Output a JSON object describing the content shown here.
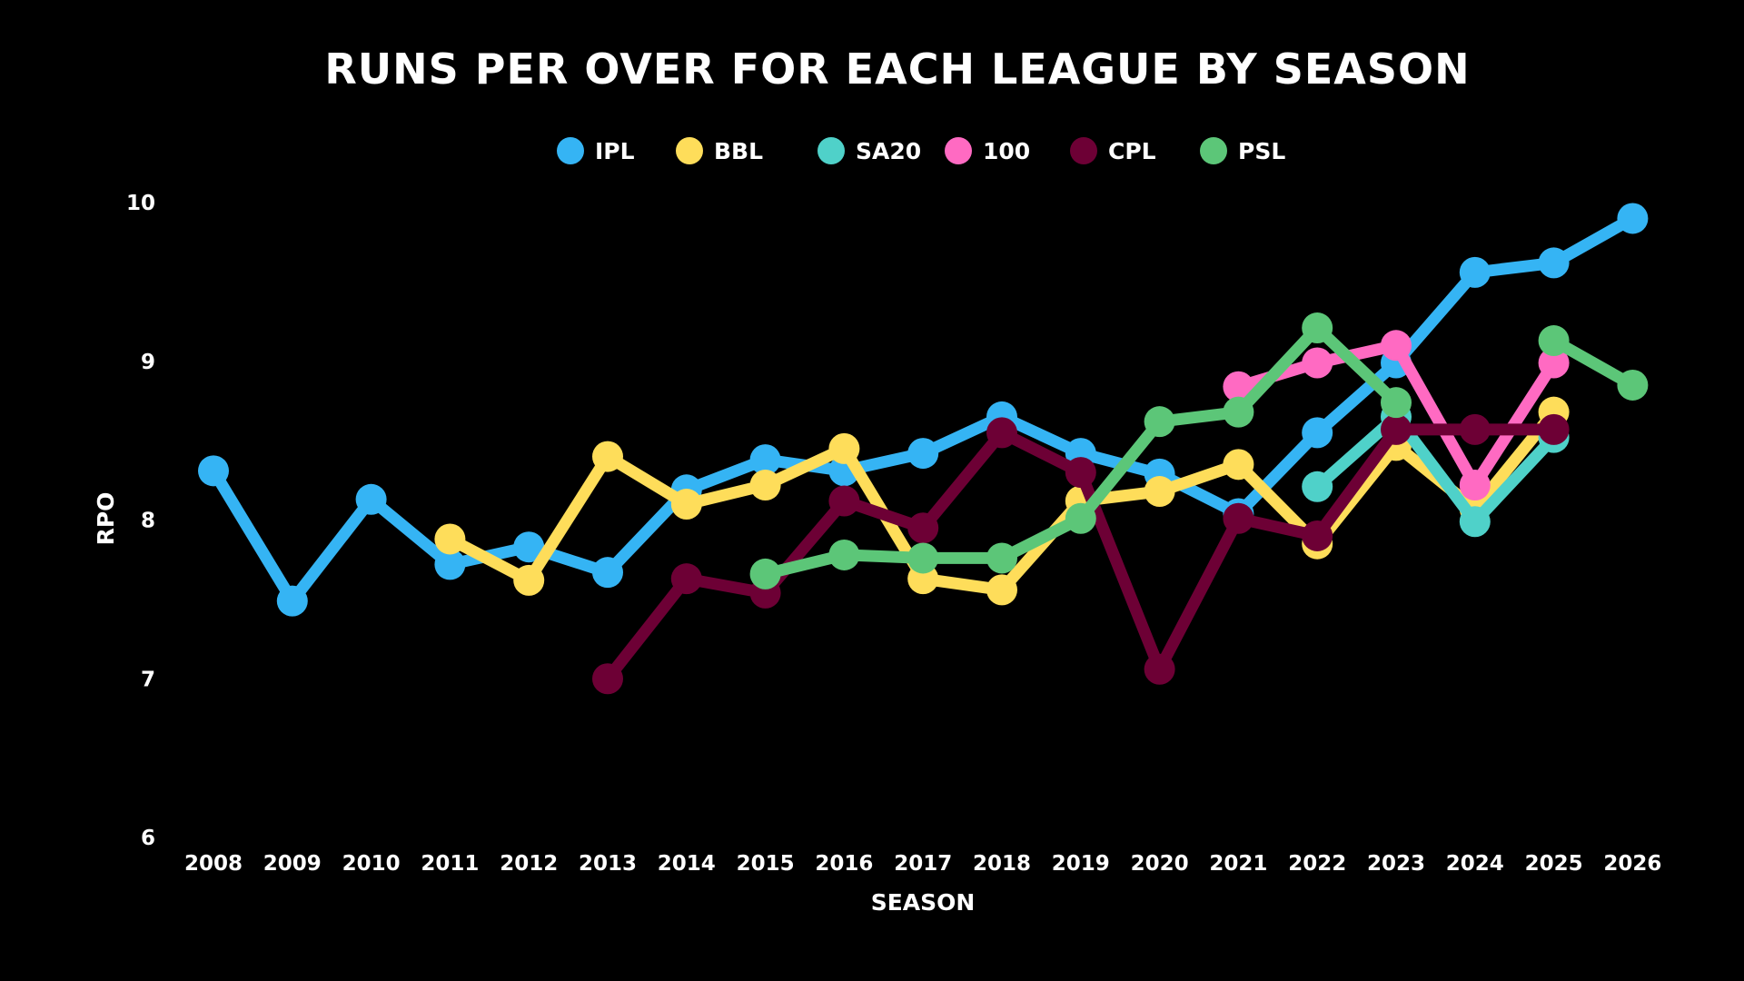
{
  "chart_data": {
    "type": "line",
    "title": "RUNS PER OVER FOR EACH LEAGUE BY SEASON",
    "xlabel": "SEASON",
    "ylabel": "RPO",
    "x": [
      "2008",
      "2009",
      "2010",
      "2011",
      "2012",
      "2013",
      "2014",
      "2015",
      "2016",
      "2017",
      "2018",
      "2019",
      "2020",
      "2021",
      "2022",
      "2023",
      "2024",
      "2025",
      "2026"
    ],
    "ylim": [
      6,
      10
    ],
    "yticks": [
      6,
      7,
      8,
      9,
      10
    ],
    "grid": false,
    "legend_position": "top-center",
    "series": [
      {
        "name": "IPL",
        "color": "#35b4f4",
        "values": [
          8.31,
          7.49,
          8.13,
          7.72,
          7.83,
          7.67,
          8.19,
          8.38,
          8.31,
          8.42,
          8.65,
          8.42,
          8.29,
          8.04,
          8.55,
          8.99,
          9.56,
          9.62,
          9.9
        ]
      },
      {
        "name": "BBL",
        "color": "#fedd5a",
        "values": [
          null,
          null,
          null,
          7.88,
          7.62,
          8.4,
          8.1,
          8.22,
          8.45,
          7.63,
          7.56,
          8.12,
          8.18,
          8.35,
          7.85,
          8.47,
          8.07,
          8.68,
          null
        ]
      },
      {
        "name": "SA20",
        "color": "#4fd1c9",
        "values": [
          null,
          null,
          null,
          null,
          null,
          null,
          null,
          null,
          null,
          null,
          null,
          null,
          null,
          null,
          8.21,
          8.65,
          7.99,
          8.52,
          null
        ]
      },
      {
        "name": "100",
        "color": "#ff6ac2",
        "values": [
          null,
          null,
          null,
          null,
          null,
          null,
          null,
          null,
          null,
          null,
          null,
          null,
          null,
          8.84,
          8.99,
          9.1,
          8.22,
          8.99,
          null
        ]
      },
      {
        "name": "CPL",
        "color": "#6d0035",
        "values": [
          null,
          null,
          null,
          null,
          null,
          7.0,
          7.63,
          7.54,
          8.12,
          7.95,
          8.55,
          8.3,
          7.06,
          8.01,
          7.9,
          8.57,
          8.57,
          8.57,
          null
        ]
      },
      {
        "name": "PSL",
        "color": "#5cc678",
        "values": [
          null,
          null,
          null,
          null,
          null,
          null,
          null,
          7.66,
          7.78,
          7.76,
          7.76,
          8.01,
          8.62,
          8.68,
          9.21,
          8.74,
          null,
          9.13,
          8.85
        ]
      }
    ]
  }
}
